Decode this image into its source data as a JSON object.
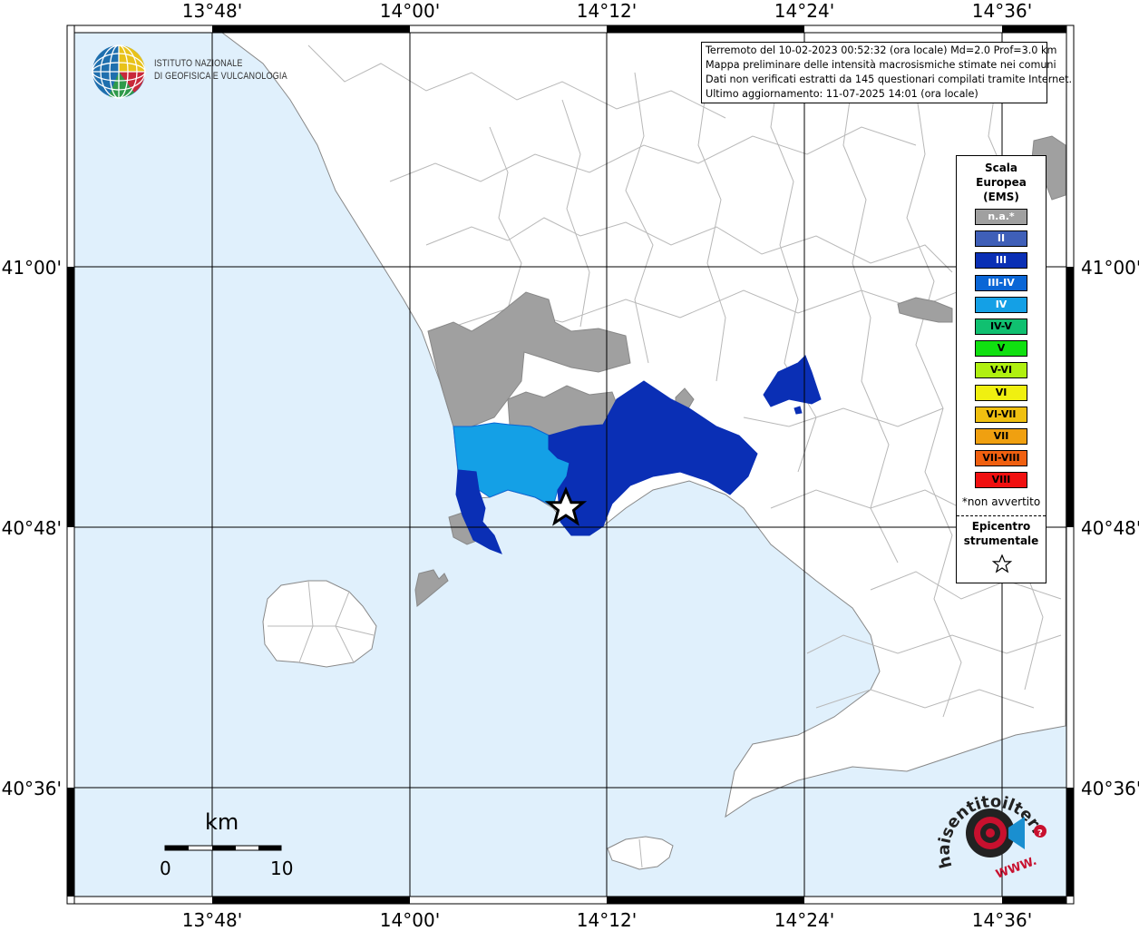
{
  "info": {
    "line1": "Terremoto del 10-02-2023 00:52:32 (ora locale) Md=2.0 Prof=3.0 km",
    "line2": "Mappa preliminare delle intensità macrosismiche stimate nei comuni",
    "line3": "Dati non verificati estratti da 145 questionari compilati tramite Internet.",
    "line4": "Ultimo aggiornamento: 11-07-2025 14:01 (ora locale)"
  },
  "logo_ingv": {
    "line1": "ISTITUTO NAZIONALE",
    "line2": "DI GEOFISICA E VULCANOLOGIA"
  },
  "coords": {
    "lon": [
      "13°48'",
      "14°00'",
      "14°12'",
      "14°24'",
      "14°36'"
    ],
    "lat": [
      "41°00'",
      "40°48'",
      "40°36'"
    ]
  },
  "legend": {
    "title_lines": [
      "Scala",
      "Europea",
      "(EMS)"
    ],
    "items": [
      {
        "label": "n.a.*",
        "color": "#a0a0a0",
        "text_color": "#ffffff"
      },
      {
        "label": "II",
        "color": "#3f5fb8",
        "text_color": "#ffffff"
      },
      {
        "label": "III",
        "color": "#0a2fb5",
        "text_color": "#ffffff"
      },
      {
        "label": "III-IV",
        "color": "#0a66d6",
        "text_color": "#ffffff"
      },
      {
        "label": "IV",
        "color": "#14a0e6",
        "text_color": "#ffffff"
      },
      {
        "label": "IV-V",
        "color": "#10c070",
        "text_color": "#000000"
      },
      {
        "label": "V",
        "color": "#10e010",
        "text_color": "#000000"
      },
      {
        "label": "V-VI",
        "color": "#b0f010",
        "text_color": "#000000"
      },
      {
        "label": "VI",
        "color": "#f0f010",
        "text_color": "#000000"
      },
      {
        "label": "VI-VII",
        "color": "#f0c010",
        "text_color": "#000000"
      },
      {
        "label": "VII",
        "color": "#f0a010",
        "text_color": "#000000"
      },
      {
        "label": "VII-VIII",
        "color": "#f06010",
        "text_color": "#000000"
      },
      {
        "label": "VIII",
        "color": "#f01010",
        "text_color": "#000000"
      }
    ],
    "note": "*non avvertito",
    "epicenter_lines": [
      "Epicentro",
      "strumentale"
    ]
  },
  "scale_bar": {
    "unit": "km",
    "min": "0",
    "max": "10"
  },
  "hsit_logo": {
    "text": "haisentitoilterremoto.it",
    "www": "WWW."
  },
  "colors": {
    "sea": "#e0f0fc",
    "land": "#ffffff",
    "border": "#b0b0b0",
    "na": "#a0a0a0",
    "ems_iii": "#0a2fb5",
    "ems_iv": "#14a0e6"
  }
}
